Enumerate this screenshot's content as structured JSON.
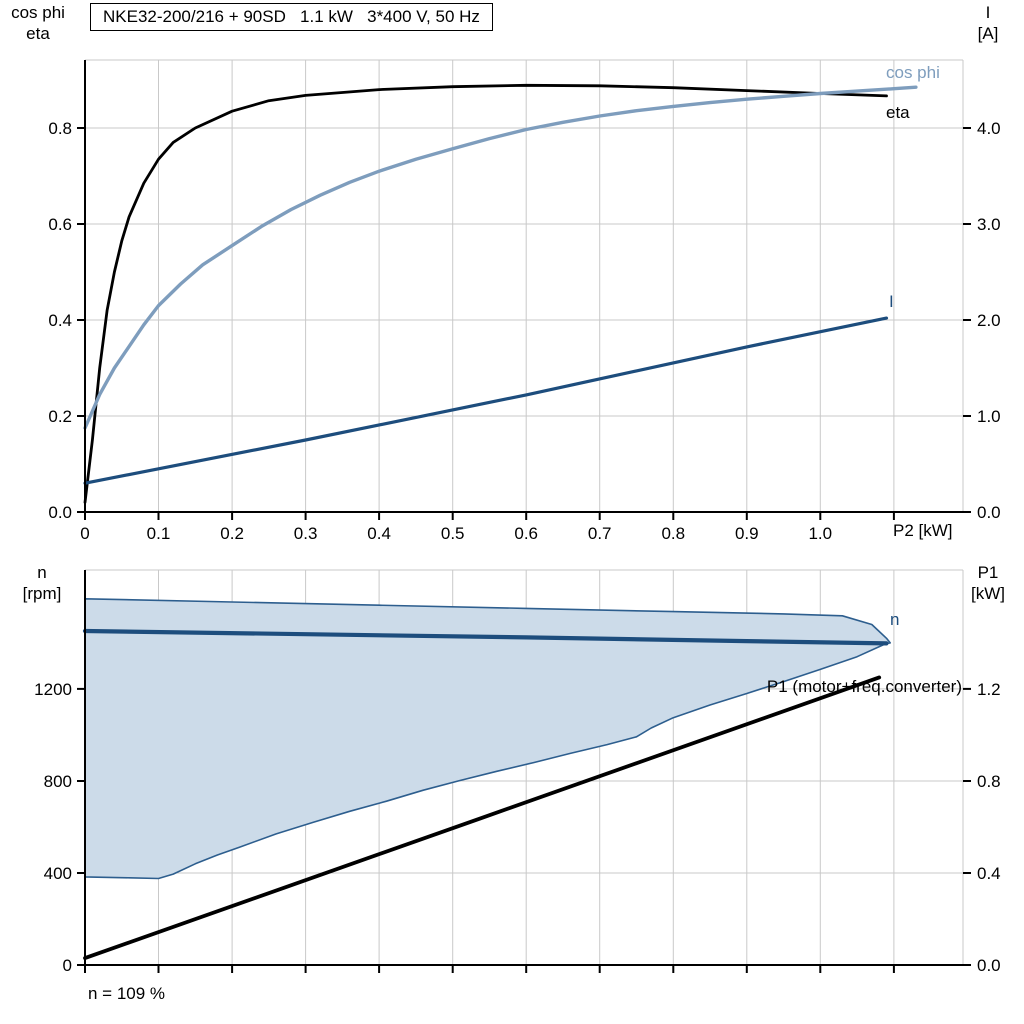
{
  "style": {
    "grid_color": "#c9c9c9",
    "axis_color": "#000000",
    "background": "#ffffff"
  },
  "chart_data": [
    {
      "type": "line",
      "title": "NKE32-200/216 + 90SD   1.1 kW   3*400 V, 50 Hz",
      "xlabel": "P2 [kW]",
      "xlim": [
        0,
        1.194
      ],
      "x_tick_values": [
        0,
        0.1,
        0.2,
        0.3,
        0.4,
        0.5,
        0.6,
        0.7,
        0.8,
        0.9,
        1.0,
        1.1
      ],
      "x_tick_labels": [
        "0",
        "0.1",
        "0.2",
        "0.3",
        "0.4",
        "0.5",
        "0.6",
        "0.7",
        "0.8",
        "0.9",
        "1.0",
        ""
      ],
      "left_axis": {
        "label1": "cos phi",
        "label2": "eta",
        "lim": [
          0,
          0.9417
        ],
        "tick_values": [
          0,
          0.2,
          0.4,
          0.6,
          0.8
        ],
        "tick_labels": [
          "0.0",
          "0.2",
          "0.4",
          "0.6",
          "0.8"
        ]
      },
      "right_axis": {
        "label1": "I",
        "label2": "[A]",
        "lim": [
          0,
          4.708
        ],
        "tick_values": [
          0,
          1,
          2,
          3,
          4
        ],
        "tick_labels": [
          "0.0",
          "1.0",
          "2.0",
          "3.0",
          "4.0"
        ]
      },
      "series": [
        {
          "name": "eta",
          "axis": "left",
          "color": "#000000",
          "width": 2.8,
          "points": [
            [
              0,
              0.02
            ],
            [
              0.01,
              0.15
            ],
            [
              0.02,
              0.3
            ],
            [
              0.03,
              0.42
            ],
            [
              0.04,
              0.5
            ],
            [
              0.05,
              0.565
            ],
            [
              0.06,
              0.615
            ],
            [
              0.08,
              0.685
            ],
            [
              0.1,
              0.735
            ],
            [
              0.12,
              0.77
            ],
            [
              0.15,
              0.8
            ],
            [
              0.2,
              0.835
            ],
            [
              0.25,
              0.857
            ],
            [
              0.3,
              0.868
            ],
            [
              0.4,
              0.88
            ],
            [
              0.5,
              0.886
            ],
            [
              0.6,
              0.889
            ],
            [
              0.7,
              0.888
            ],
            [
              0.8,
              0.884
            ],
            [
              0.9,
              0.878
            ],
            [
              1.0,
              0.872
            ],
            [
              1.09,
              0.867
            ]
          ]
        },
        {
          "name": "cos phi",
          "axis": "left",
          "color": "#7e9dbd",
          "width": 3.4,
          "points": [
            [
              0,
              0.175
            ],
            [
              0.01,
              0.21
            ],
            [
              0.02,
              0.245
            ],
            [
              0.04,
              0.3
            ],
            [
              0.06,
              0.345
            ],
            [
              0.08,
              0.39
            ],
            [
              0.1,
              0.43
            ],
            [
              0.13,
              0.475
            ],
            [
              0.16,
              0.515
            ],
            [
              0.2,
              0.555
            ],
            [
              0.24,
              0.595
            ],
            [
              0.28,
              0.63
            ],
            [
              0.32,
              0.66
            ],
            [
              0.36,
              0.687
            ],
            [
              0.4,
              0.71
            ],
            [
              0.45,
              0.735
            ],
            [
              0.5,
              0.757
            ],
            [
              0.55,
              0.778
            ],
            [
              0.6,
              0.797
            ],
            [
              0.65,
              0.812
            ],
            [
              0.7,
              0.825
            ],
            [
              0.75,
              0.836
            ],
            [
              0.8,
              0.845
            ],
            [
              0.85,
              0.853
            ],
            [
              0.9,
              0.86
            ],
            [
              0.95,
              0.866
            ],
            [
              1.0,
              0.872
            ],
            [
              1.05,
              0.877
            ],
            [
              1.1,
              0.882
            ],
            [
              1.13,
              0.885
            ]
          ]
        },
        {
          "name": "I",
          "axis": "right",
          "color": "#1d4d7d",
          "width": 3.2,
          "points": [
            [
              0,
              0.3
            ],
            [
              0.3,
              0.75
            ],
            [
              0.6,
              1.22
            ],
            [
              0.9,
              1.72
            ],
            [
              1.09,
              2.02
            ]
          ]
        }
      ]
    },
    {
      "type": "line",
      "title": "",
      "xlabel": "",
      "annotation": "n = 109 %",
      "xlim": [
        0,
        1.194
      ],
      "x_tick_values": [
        0,
        0.1,
        0.2,
        0.3,
        0.4,
        0.5,
        0.6,
        0.7,
        0.8,
        0.9,
        1.0,
        1.1
      ],
      "x_tick_labels": [
        "",
        "",
        "",
        "",
        "",
        "",
        "",
        "",
        "",
        "",
        "",
        ""
      ],
      "left_axis": {
        "label1": "n",
        "label2": "[rpm]",
        "lim": [
          0,
          1717
        ],
        "tick_values": [
          0,
          400,
          800,
          1200
        ],
        "tick_labels": [
          "0",
          "400",
          "800",
          "1200"
        ]
      },
      "right_axis": {
        "label1": "P1",
        "label2": "[kW]",
        "lim": [
          0,
          1.717
        ],
        "tick_values": [
          0,
          0.4,
          0.8,
          1.2
        ],
        "tick_labels": [
          "0.0",
          "0.4",
          "0.8",
          "1.2"
        ]
      },
      "envelope": {
        "fill": "#ccdbe9",
        "stroke": "#2d5e8e",
        "stroke_width": 1.6,
        "upper": [
          [
            0,
            1592
          ],
          [
            0.2,
            1578
          ],
          [
            0.4,
            1564
          ],
          [
            0.6,
            1550
          ],
          [
            0.8,
            1536
          ],
          [
            0.95,
            1526
          ],
          [
            1.03,
            1518
          ],
          [
            1.07,
            1480
          ],
          [
            1.09,
            1420
          ],
          [
            1.095,
            1400
          ]
        ],
        "lower": [
          [
            0,
            383
          ],
          [
            0.06,
            379
          ],
          [
            0.1,
            376
          ],
          [
            0.12,
            395
          ],
          [
            0.15,
            440
          ],
          [
            0.18,
            478
          ],
          [
            0.21,
            512
          ],
          [
            0.26,
            570
          ],
          [
            0.31,
            620
          ],
          [
            0.36,
            668
          ],
          [
            0.41,
            712
          ],
          [
            0.46,
            760
          ],
          [
            0.51,
            802
          ],
          [
            0.56,
            842
          ],
          [
            0.61,
            880
          ],
          [
            0.66,
            920
          ],
          [
            0.71,
            958
          ],
          [
            0.75,
            992
          ],
          [
            0.77,
            1030
          ],
          [
            0.8,
            1075
          ],
          [
            0.85,
            1130
          ],
          [
            0.9,
            1180
          ],
          [
            0.95,
            1232
          ],
          [
            1.0,
            1285
          ],
          [
            1.05,
            1340
          ],
          [
            1.09,
            1398
          ],
          [
            1.095,
            1400
          ]
        ]
      },
      "series": [
        {
          "name": "n",
          "axis": "left",
          "color": "#1d4d7d",
          "width": 4.2,
          "points": [
            [
              0,
              1452
            ],
            [
              0.3,
              1438
            ],
            [
              0.6,
              1424
            ],
            [
              0.9,
              1408
            ],
            [
              1.09,
              1398
            ]
          ]
        },
        {
          "name": "P1 (motor+freq.converter)",
          "axis": "right",
          "color": "#000000",
          "width": 3.8,
          "points": [
            [
              0,
              0.03
            ],
            [
              0.54,
              0.64
            ],
            [
              1.08,
              1.25
            ]
          ]
        }
      ]
    }
  ]
}
